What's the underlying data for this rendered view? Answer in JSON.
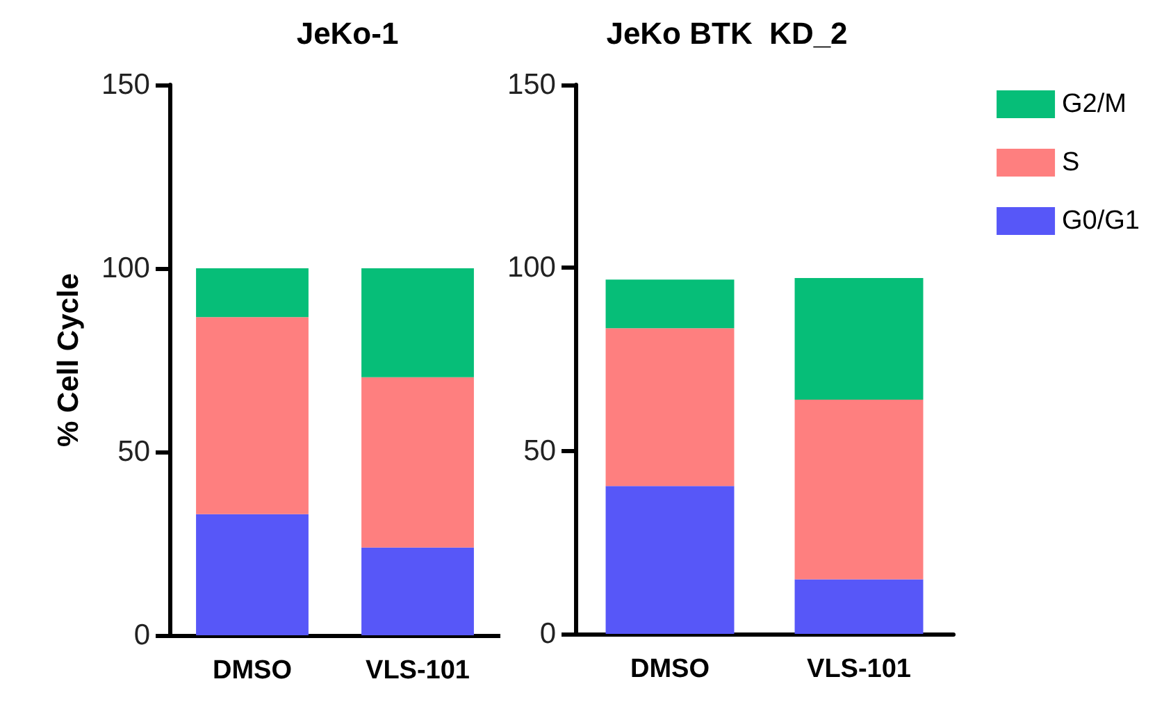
{
  "chart_data": [
    {
      "type": "bar",
      "title": "JeKo-1",
      "ylabel": "% Cell Cycle",
      "categories": [
        "DMSO",
        "VLS-101"
      ],
      "stacked": true,
      "ylim": [
        0,
        150
      ],
      "yticks": [
        0,
        50,
        100,
        150
      ],
      "grid": false,
      "legend": false,
      "series": [
        {
          "color": "#5757f8",
          "values": [
            33.0,
            23.9
          ]
        },
        {
          "color": "#fe7f7f",
          "values": [
            53.7,
            46.4
          ]
        },
        {
          "color": "#06be78",
          "values": [
            13.3,
            29.7
          ]
        }
      ]
    },
    {
      "type": "bar",
      "title": "JeKo BTK  KD_2",
      "categories": [
        "DMSO",
        "VLS-101"
      ],
      "stacked": true,
      "ylim": [
        0,
        150
      ],
      "yticks": [
        0,
        50,
        100,
        150
      ],
      "grid": false,
      "legend": "top right",
      "series": [
        {
          "name": "G0/G1",
          "color": "#5757f8",
          "values": [
            40.4,
            14.9
          ]
        },
        {
          "name": "S",
          "color": "#fe7f7f",
          "values": [
            43.1,
            49.1
          ]
        },
        {
          "name": "G2/M",
          "color": "#06be78",
          "values": [
            13.3,
            33.2
          ]
        }
      ]
    }
  ]
}
